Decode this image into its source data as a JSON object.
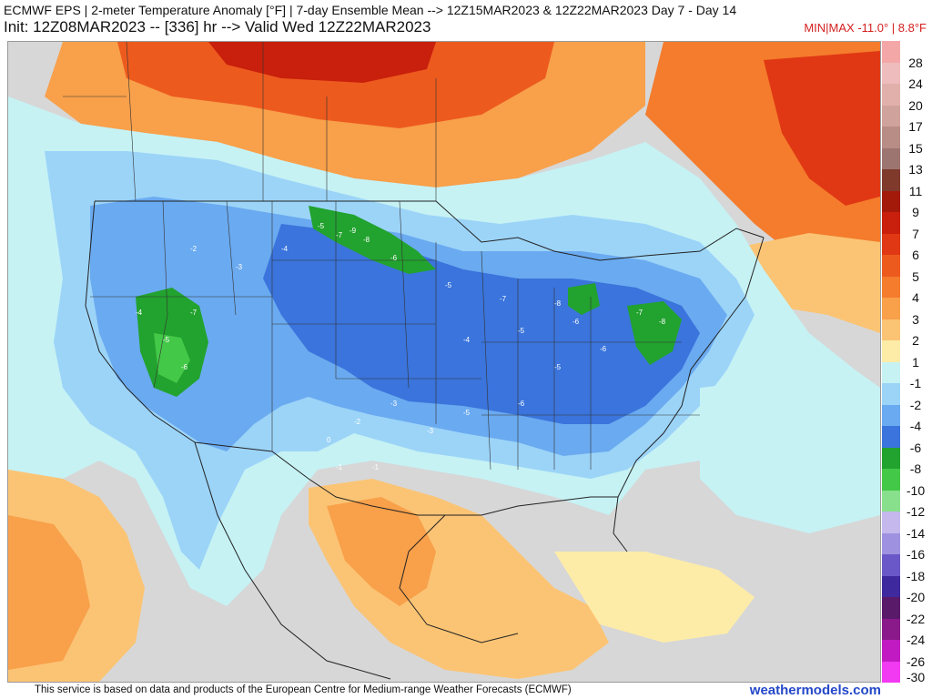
{
  "header": {
    "line1": "ECMWF EPS | 2-meter Temperature Anomaly [°F] | 7-day Ensemble Mean --> 12Z15MAR2023 & 12Z22MAR2023   Day 7 - Day 14",
    "line2": "Init: 12Z08MAR2023 -- [336] hr --> Valid Wed 12Z22MAR2023",
    "minmax": "MIN|MAX -11.0° | 8.8°F"
  },
  "legend": {
    "entries": [
      {
        "label": "28",
        "color": "#f4a7a7"
      },
      {
        "label": "24",
        "color": "#eebcbc"
      },
      {
        "label": "20",
        "color": "#e2b0aa"
      },
      {
        "label": "17",
        "color": "#cfa29c"
      },
      {
        "label": "15",
        "color": "#b78d86"
      },
      {
        "label": "13",
        "color": "#9d7570"
      },
      {
        "label": "11",
        "color": "#7f3a2c"
      },
      {
        "label": "9",
        "color": "#a31a0a"
      },
      {
        "label": "7",
        "color": "#c8200c"
      },
      {
        "label": "6",
        "color": "#e03814"
      },
      {
        "label": "5",
        "color": "#ed5a1e"
      },
      {
        "label": "4",
        "color": "#f47c2c"
      },
      {
        "label": "3",
        "color": "#f8a04a"
      },
      {
        "label": "2",
        "color": "#fbc474"
      },
      {
        "label": "1",
        "color": "#fdeca8"
      },
      {
        "label": "-1",
        "color": "#c6f2f4"
      },
      {
        "label": "-2",
        "color": "#9cd4f8"
      },
      {
        "label": "-4",
        "color": "#6aaaf0"
      },
      {
        "label": "-6",
        "color": "#3a74dc"
      },
      {
        "label": "-8",
        "color": "#22a22e"
      },
      {
        "label": "-10",
        "color": "#44c848"
      },
      {
        "label": "-12",
        "color": "#88e08c"
      },
      {
        "label": "-14",
        "color": "#c4b8ec"
      },
      {
        "label": "-16",
        "color": "#9e92e0"
      },
      {
        "label": "-18",
        "color": "#6a58c8"
      },
      {
        "label": "-20",
        "color": "#3e2a9e"
      },
      {
        "label": "-22",
        "color": "#5a1a6a"
      },
      {
        "label": "-24",
        "color": "#8a1a8a"
      },
      {
        "label": "-26",
        "color": "#c21ac2"
      },
      {
        "label": "-30",
        "color": "#f23af2"
      }
    ]
  },
  "map": {
    "labels": [
      {
        "text": "-5"
      },
      {
        "text": "-7"
      },
      {
        "text": "-8"
      },
      {
        "text": "-9"
      },
      {
        "text": "-4"
      },
      {
        "text": "-6"
      },
      {
        "text": "-3"
      },
      {
        "text": "-2"
      },
      {
        "text": "-5"
      },
      {
        "text": "-7"
      },
      {
        "text": "-8"
      },
      {
        "text": "-6"
      },
      {
        "text": "-5"
      },
      {
        "text": "-4"
      },
      {
        "text": "-7"
      },
      {
        "text": "-8"
      },
      {
        "text": "-6"
      },
      {
        "text": "-5"
      },
      {
        "text": "-3"
      },
      {
        "text": "-2"
      },
      {
        "text": "-1"
      },
      {
        "text": "0"
      },
      {
        "text": "-1"
      },
      {
        "text": "-5"
      },
      {
        "text": "-6"
      },
      {
        "text": "-4"
      },
      {
        "text": "-7"
      },
      {
        "text": "-6"
      },
      {
        "text": "-5"
      },
      {
        "text": "-3"
      }
    ]
  },
  "footer": {
    "note": "This service is based on data and products of the European Centre for Medium-range Weather Forecasts (ECMWF)",
    "brand": "weathermodels.com"
  }
}
